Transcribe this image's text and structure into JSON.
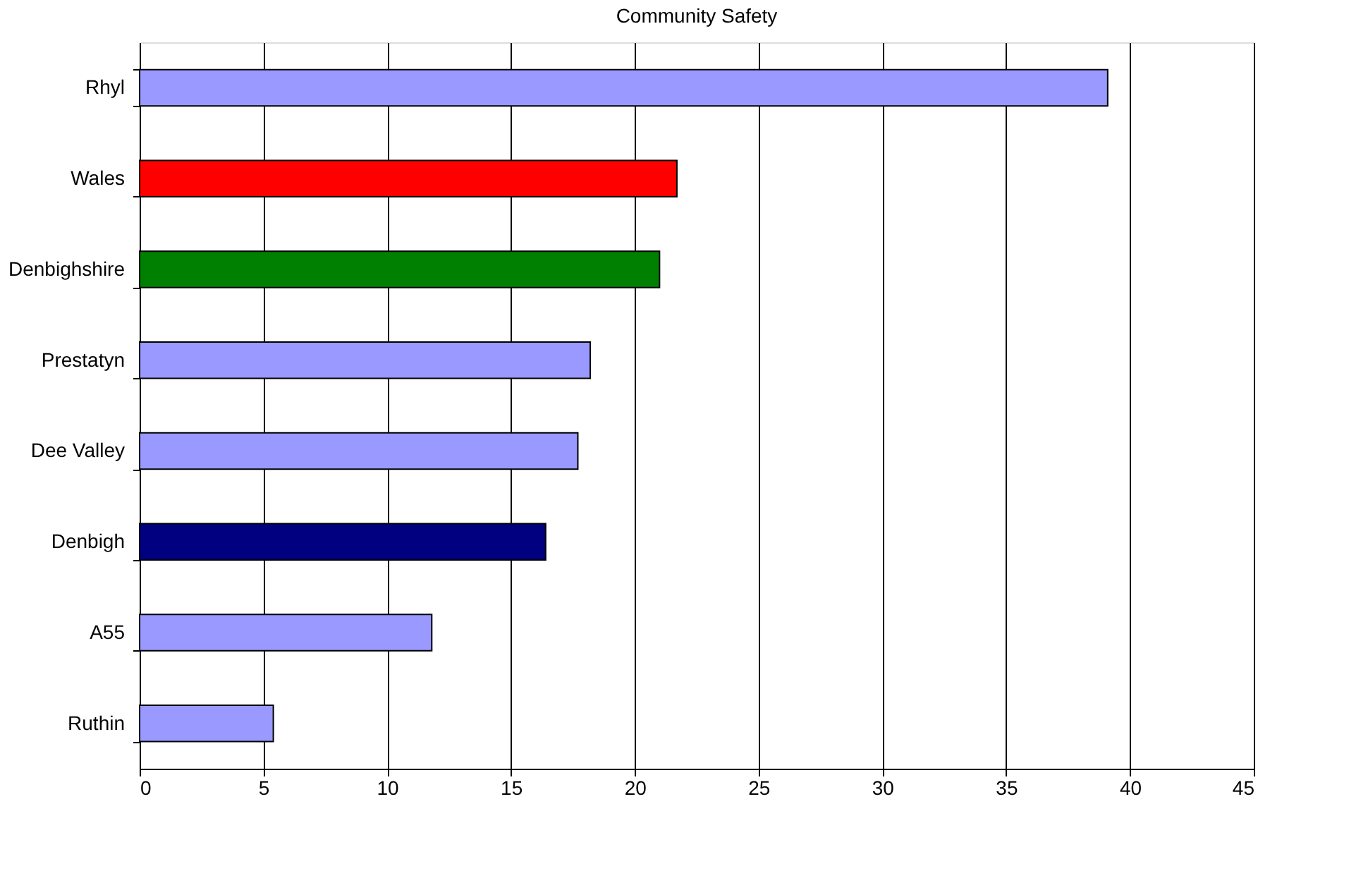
{
  "chart_data": {
    "type": "bar",
    "orientation": "horizontal",
    "title": "Community Safety",
    "categories": [
      "Rhyl",
      "Wales",
      "Denbighshire",
      "Prestatyn",
      "Dee Valley",
      "Denbigh",
      "A55",
      "Ruthin"
    ],
    "values": [
      39.1,
      21.7,
      21.0,
      18.2,
      17.7,
      16.4,
      11.8,
      5.4
    ],
    "colors": [
      "#9999ff",
      "#ff0000",
      "#008000",
      "#9999ff",
      "#9999ff",
      "#000080",
      "#9999ff",
      "#9999ff"
    ],
    "xlim": [
      0,
      45
    ],
    "xticks": [
      0,
      5,
      10,
      15,
      20,
      25,
      30,
      35,
      40,
      45
    ],
    "grid": "x",
    "legend": false
  }
}
